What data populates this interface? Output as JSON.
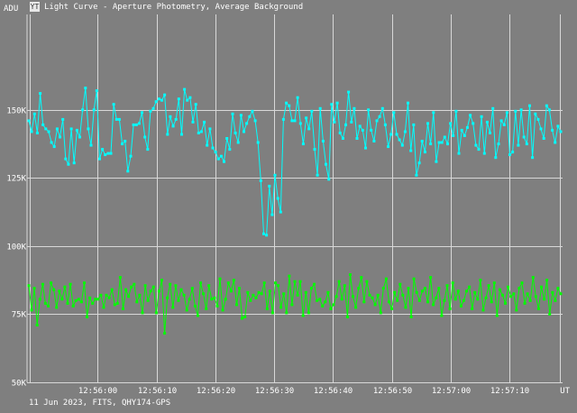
{
  "window": {
    "icon_glyph": "YT",
    "title": "Light Curve - Aperture Photometry, Average Background",
    "footer": "11 Jun 2023, FITS, QHY174-GPS"
  },
  "chart_data": {
    "type": "line",
    "ylabel": "ADU",
    "xlabel": "UT",
    "ylim": [
      50000,
      185000
    ],
    "xlim_seconds": [
      -22,
      69
    ],
    "y_ticks": [
      {
        "value": 50000,
        "label": "50K"
      },
      {
        "value": 75000,
        "label": "75K"
      },
      {
        "value": 100000,
        "label": "100K"
      },
      {
        "value": 125000,
        "label": "125K"
      },
      {
        "value": 150000,
        "label": "150K"
      }
    ],
    "x_ticks": [
      {
        "t": -10,
        "label": "12:56:00"
      },
      {
        "t": 0,
        "label": "12:56:10"
      },
      {
        "t": 10,
        "label": "12:56:20"
      },
      {
        "t": 20,
        "label": "12:56:30"
      },
      {
        "t": 30,
        "label": "12:56:40"
      },
      {
        "t": 40,
        "label": "12:56:50"
      },
      {
        "t": 50,
        "label": "12:57:00"
      },
      {
        "t": 60,
        "label": "12:57:10"
      }
    ],
    "extra_vlines_t": [
      -21.5,
      68.5
    ],
    "grid": true,
    "series": [
      {
        "color": "#00ffff",
        "values": [
          146000,
          142000,
          148500,
          141500,
          156000,
          144500,
          143000,
          142000,
          138000,
          136500,
          143000,
          140000,
          146500,
          132000,
          130000,
          143000,
          130500,
          142500,
          140000,
          150000,
          158000,
          143000,
          137000,
          150000,
          157000,
          132000,
          135500,
          133500,
          134000,
          134000,
          152000,
          146500,
          146500,
          137500,
          138500,
          127500,
          133000,
          144500,
          144500,
          145000,
          149000,
          140000,
          135500,
          149500,
          150500,
          153000,
          154000,
          153500,
          155500,
          141000,
          147500,
          144000,
          146500,
          154000,
          141000,
          157500,
          153500,
          154500,
          145500,
          152000,
          141500,
          142000,
          145500,
          137000,
          143000,
          136000,
          134500,
          132000,
          133000,
          131000,
          139500,
          135500,
          148500,
          141500,
          138000,
          148000,
          142000,
          145000,
          147500,
          149500,
          146000,
          138000,
          124000,
          104500,
          104000,
          122000,
          111500,
          126000,
          117500,
          112500,
          146500,
          152500,
          151500,
          146000,
          146000,
          154500,
          145000,
          137500,
          147000,
          143000,
          149500,
          135500,
          126000,
          150500,
          138500,
          130000,
          124500,
          152000,
          145500,
          152500,
          141500,
          139500,
          144500,
          156500,
          145500,
          150500,
          139500,
          144000,
          142500,
          136000,
          150000,
          142500,
          138500,
          146000,
          147500,
          150500,
          144500,
          136500,
          141000,
          149000,
          141000,
          139000,
          137000,
          142000,
          152500,
          135000,
          144500,
          126000,
          130500,
          138500,
          134500,
          145000,
          137500,
          149000,
          131000,
          138000,
          138000,
          140000,
          137500,
          145000,
          140500,
          149500,
          134000,
          142500,
          140500,
          143500,
          148000,
          145000,
          137000,
          135500,
          147500,
          134000,
          145500,
          141500,
          150500,
          132500,
          137500,
          146000,
          144500,
          149000,
          133500,
          134500,
          149500,
          137000,
          150000,
          140000,
          137500,
          151500,
          132500,
          148500,
          146500,
          143000,
          139500,
          151500,
          150000,
          142500,
          138000,
          144000,
          142000
        ]
      },
      {
        "color": "#00ff00",
        "values": [
          85500,
          76500,
          84500,
          71000,
          80500,
          86000,
          79000,
          78000,
          86500,
          84000,
          77500,
          83500,
          80500,
          85000,
          79000,
          86000,
          78000,
          80000,
          80500,
          79500,
          86500,
          74000,
          81000,
          79000,
          80500,
          80500,
          82000,
          77500,
          82000,
          81000,
          84000,
          78500,
          79000,
          88500,
          77000,
          84000,
          81500,
          85000,
          86000,
          79500,
          82000,
          75500,
          85500,
          80000,
          83500,
          85000,
          75500,
          83500,
          87500,
          68000,
          81000,
          86000,
          77500,
          85500,
          80000,
          84000,
          82000,
          76500,
          80500,
          84500,
          78000,
          74500,
          86500,
          82500,
          77000,
          85500,
          80500,
          81000,
          78000,
          88000,
          76500,
          80500,
          86500,
          83500,
          87500,
          78500,
          84500,
          73500,
          74000,
          83000,
          80000,
          82000,
          81000,
          83000,
          82500,
          86500,
          77000,
          83500,
          75500,
          86500,
          85500,
          77500,
          82500,
          75500,
          89000,
          78500,
          87000,
          82000,
          87000,
          74500,
          83000,
          75500,
          84500,
          86000,
          80000,
          80500,
          78000,
          79500,
          83000,
          77000,
          78500,
          81500,
          87000,
          80500,
          85500,
          74000,
          89500,
          81500,
          77500,
          84500,
          88500,
          79500,
          87000,
          82000,
          81000,
          78500,
          82000,
          75500,
          84500,
          88000,
          79500,
          77000,
          83000,
          80000,
          86000,
          82000,
          77500,
          84500,
          74000,
          88000,
          83000,
          80000,
          83500,
          84500,
          79500,
          88500,
          78500,
          81000,
          84500,
          74500,
          80000,
          85500,
          77000,
          86500,
          80500,
          83500,
          78000,
          80000,
          83500,
          85000,
          77000,
          83000,
          80500,
          87500,
          76500,
          81000,
          85500,
          79500,
          86500,
          74500,
          84000,
          82000,
          79000,
          85000,
          81500,
          82500,
          76500,
          84500,
          86500,
          79000,
          82500,
          80000,
          88500,
          81500,
          77000,
          85000,
          80500,
          87500,
          75000,
          83000,
          80000,
          84500,
          82500
        ]
      }
    ]
  }
}
